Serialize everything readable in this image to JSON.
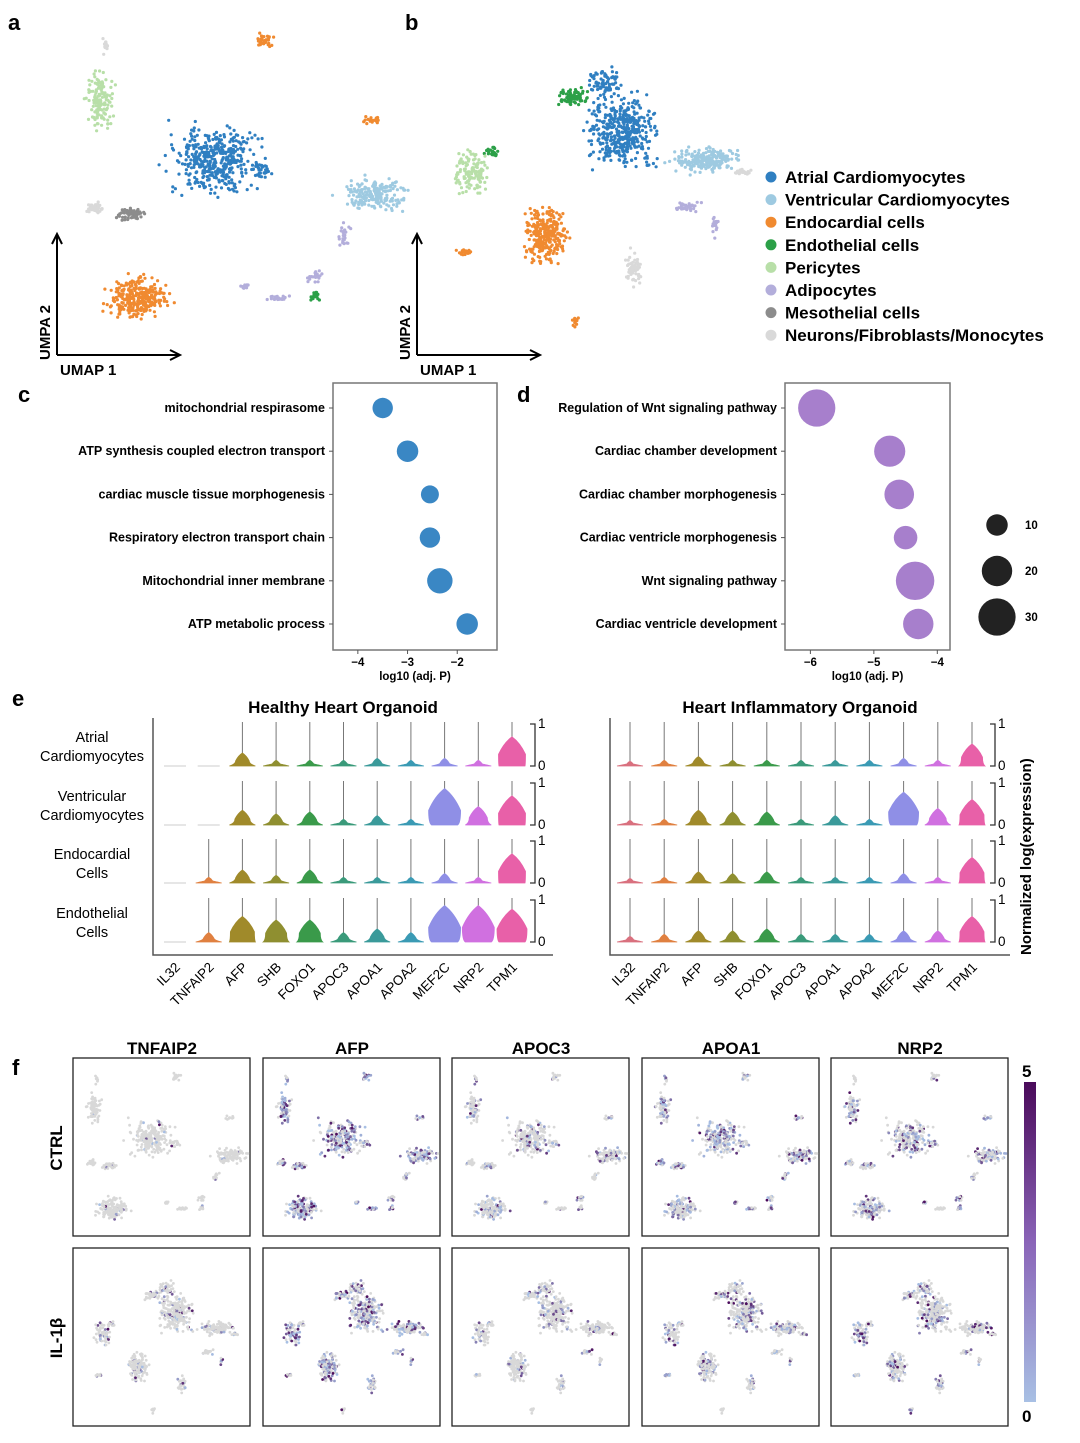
{
  "panels": {
    "a": "a",
    "b": "b",
    "c": "c",
    "d": "d",
    "e": "e",
    "f": "f"
  },
  "umap": {
    "xlabel": "UMAP 1",
    "ylabel": "UMPA 2",
    "legend": [
      {
        "name": "Atrial Cardiomyocytes",
        "color": "#2f7fc1"
      },
      {
        "name": "Ventricular Cardiomyocytes",
        "color": "#9ecae1"
      },
      {
        "name": "Endocardial cells",
        "color": "#f08a30"
      },
      {
        "name": "Endothelial cells",
        "color": "#2ca048"
      },
      {
        "name": "Pericytes",
        "color": "#b8dfa8"
      },
      {
        "name": "Adipocytes",
        "color": "#b3aedb"
      },
      {
        "name": "Mesothelial cells",
        "color": "#8c8c8c"
      },
      {
        "name": "Neurons/Fibroblasts/Monocytes",
        "color": "#d9d9d9"
      }
    ]
  },
  "chart_data": [
    {
      "panel": "c",
      "type": "scatter",
      "xlabel": "log10 (adj. P)",
      "xlim": [
        -4.5,
        -1.2
      ],
      "xticks": [
        -4,
        -3,
        -2
      ],
      "xtick_labels": [
        "−4",
        "−3",
        "−2"
      ],
      "color": "#3a87c4",
      "categories": [
        "mitochondrial respirasome",
        "ATP synthesis coupled electron transport",
        "cardiac muscle tissue morphogenesis",
        "Respiratory electron transport chain",
        "Mitochondrial inner membrane",
        "ATP metabolic process"
      ],
      "x": [
        -3.5,
        -3.0,
        -2.55,
        -2.55,
        -2.35,
        -1.8
      ],
      "size": [
        9,
        10,
        7,
        9,
        14,
        10
      ]
    },
    {
      "panel": "d",
      "type": "scatter",
      "xlabel": "log10 (adj. P)",
      "xlim": [
        -6.4,
        -3.8
      ],
      "xticks": [
        -6,
        -5,
        -4
      ],
      "xtick_labels": [
        "−6",
        "−5",
        "−4"
      ],
      "color": "#a77fcc",
      "categories": [
        "Regulation of Wnt signaling pathway",
        "Cardiac chamber development",
        "Cardiac chamber morphogenesis",
        "Cardiac ventricle morphogenesis",
        "Wnt signaling pathway",
        "Cardiac ventricle development"
      ],
      "x": [
        -5.9,
        -4.75,
        -4.6,
        -4.5,
        -4.35,
        -4.3
      ],
      "size": [
        30,
        21,
        19,
        12,
        32,
        20
      ],
      "size_legend": [
        {
          "label": "10",
          "value": 10
        },
        {
          "label": "20",
          "value": 20
        },
        {
          "label": "30",
          "value": 30
        }
      ]
    },
    {
      "panel": "e",
      "type": "violin",
      "ylabel": "Normalized log(expression)",
      "scale_labels": {
        "top": "1",
        "bottom": "0"
      },
      "genes": [
        "IL32",
        "TNFAIP2",
        "AFP",
        "SHB",
        "FOXO1",
        "APOC3",
        "APOA1",
        "APOA2",
        "MEF2C",
        "NRP2",
        "TPM1"
      ],
      "gene_colors": [
        "#d9707e",
        "#e08040",
        "#a08a2a",
        "#8f8f30",
        "#3a9a4a",
        "#3a9a7a",
        "#3a9a9a",
        "#3a9ab4",
        "#8f8fe6",
        "#d070e0",
        "#e860a8"
      ],
      "cell_types": [
        "Atrial\nCardiomyocytes",
        "Ventricular\nCardiomyocytes",
        "Endocardial\nCells",
        "Endothelial\nCells"
      ],
      "groups": [
        {
          "title": "Healthy Heart Organoid",
          "values": [
            [
              0,
              0,
              0.25,
              0.05,
              0.05,
              0.05,
              0.1,
              0.05,
              0.1,
              0.05,
              0.7
            ],
            [
              0,
              0,
              0.3,
              0.2,
              0.25,
              0.05,
              0.15,
              0.05,
              0.9,
              0.4,
              0.7
            ],
            [
              0,
              0.05,
              0.25,
              0.1,
              0.25,
              0.05,
              0.05,
              0.05,
              0.15,
              0.05,
              0.7
            ],
            [
              0,
              0.15,
              0.6,
              0.5,
              0.5,
              0.15,
              0.25,
              0.15,
              0.9,
              0.9,
              0.8
            ]
          ]
        },
        {
          "title": "Heart Inflammatory Organoid",
          "values": [
            [
              0.02,
              0.05,
              0.15,
              0.05,
              0.05,
              0.05,
              0.05,
              0.05,
              0.1,
              0.05,
              0.5
            ],
            [
              0.02,
              0.05,
              0.3,
              0.25,
              0.25,
              0.05,
              0.15,
              0.05,
              0.8,
              0.35,
              0.6
            ],
            [
              0.02,
              0.05,
              0.2,
              0.15,
              0.2,
              0.05,
              0.05,
              0.05,
              0.15,
              0.05,
              0.6
            ],
            [
              0.05,
              0.1,
              0.2,
              0.2,
              0.25,
              0.1,
              0.1,
              0.1,
              0.2,
              0.2,
              0.6
            ]
          ]
        }
      ]
    },
    {
      "panel": "f",
      "type": "feature_plot",
      "genes": [
        "TNFAIP2",
        "AFP",
        "APOC3",
        "APOA1",
        "NRP2"
      ],
      "conditions": [
        "CTRL",
        "IL-1β"
      ],
      "fraction_expressing": [
        [
          0.05,
          0.6,
          0.25,
          0.45,
          0.4
        ],
        [
          0.15,
          0.5,
          0.2,
          0.3,
          0.35
        ]
      ],
      "colorbar": {
        "min": "0",
        "max": "5",
        "low_color": "#a8c0e4",
        "high_color": "#4a0a5a"
      }
    }
  ]
}
